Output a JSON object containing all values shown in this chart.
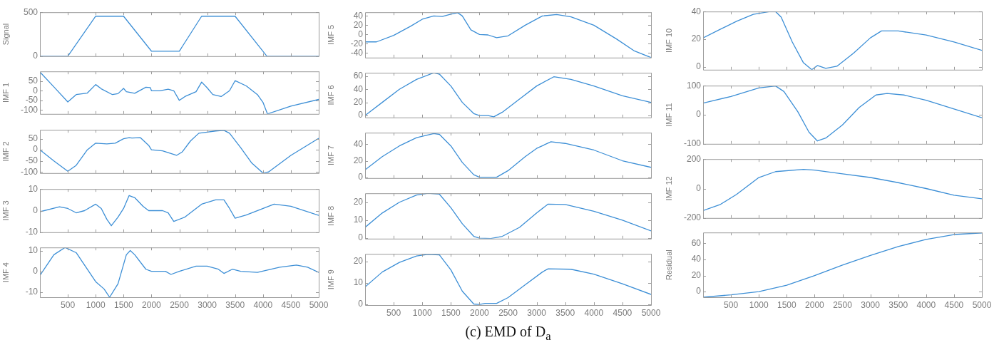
{
  "chart_data": [
    {
      "type": "line",
      "ylabel": "Signal",
      "x": [
        0,
        500,
        1000,
        1500,
        2000,
        2500,
        2900,
        3500,
        4070,
        5000
      ],
      "series": [
        {
          "color": "#3d8fd6",
          "values": [
            0,
            0,
            455,
            455,
            57,
            57,
            455,
            455,
            0,
            0
          ]
        }
      ],
      "xlim": [
        0,
        5000
      ],
      "xticks": [
        500,
        1000,
        1500,
        2000,
        2500,
        3000,
        3500,
        4000,
        4500,
        5000
      ],
      "ylim": [
        0,
        500
      ],
      "yticks": [
        0,
        500
      ],
      "tick_labels": "y"
    },
    {
      "type": "line",
      "ylabel": "IMF 1",
      "x": [
        0,
        250,
        500,
        650,
        850,
        1000,
        1100,
        1300,
        1400,
        1500,
        1550,
        1700,
        1900,
        1980,
        2000,
        2150,
        2300,
        2400,
        2500,
        2600,
        2800,
        2900,
        3000,
        3100,
        3250,
        3400,
        3500,
        3700,
        3900,
        4000,
        4080,
        4500,
        5000
      ],
      "series": [
        {
          "color": "#3d8fd6",
          "values": [
            97,
            20,
            -58,
            -20,
            -12,
            32,
            10,
            -20,
            -15,
            12,
            -5,
            -13,
            18,
            16,
            0,
            0,
            8,
            0,
            -50,
            -30,
            -5,
            45,
            15,
            -20,
            -30,
            0,
            52,
            25,
            -20,
            -60,
            -120,
            -80,
            -45
          ]
        }
      ],
      "xlim": [
        0,
        5000
      ],
      "xticks": [
        500,
        1000,
        1500,
        2000,
        2500,
        3000,
        3500,
        4000,
        4500,
        5000
      ],
      "ylim": [
        -120,
        100
      ],
      "yticks": [
        -100,
        -50,
        0,
        50
      ],
      "tick_labels": "y"
    },
    {
      "type": "line",
      "ylabel": "IMF 2",
      "x": [
        0,
        250,
        500,
        650,
        850,
        1000,
        1200,
        1350,
        1500,
        1600,
        1650,
        1800,
        1950,
        2000,
        2200,
        2450,
        2550,
        2700,
        2850,
        3000,
        3150,
        3300,
        3400,
        3600,
        3800,
        4000,
        4100,
        4500,
        5000
      ],
      "series": [
        {
          "color": "#3d8fd6",
          "values": [
            0,
            -50,
            -97,
            -70,
            0,
            30,
            27,
            30,
            50,
            55,
            53,
            55,
            20,
            0,
            -5,
            -25,
            -10,
            40,
            75,
            80,
            85,
            88,
            75,
            10,
            -60,
            -105,
            -100,
            -25,
            52
          ]
        }
      ],
      "xlim": [
        0,
        5000
      ],
      "xticks": [
        500,
        1000,
        1500,
        2000,
        2500,
        3000,
        3500,
        4000,
        4500,
        5000
      ],
      "ylim": [
        -105,
        90
      ],
      "yticks": [
        -100,
        -50,
        0,
        50
      ],
      "tick_labels": "y"
    },
    {
      "type": "line",
      "ylabel": "IMF 3",
      "x": [
        0,
        350,
        500,
        650,
        800,
        1000,
        1100,
        1200,
        1280,
        1400,
        1500,
        1600,
        1700,
        1850,
        1950,
        2200,
        2300,
        2400,
        2600,
        2900,
        3150,
        3300,
        3400,
        3500,
        3700,
        4200,
        4500,
        5000
      ],
      "series": [
        {
          "color": "#3d8fd6",
          "values": [
            -0.5,
            1.8,
            1,
            -1,
            0,
            3,
            1,
            -4,
            -7,
            -3,
            1,
            7,
            6,
            2,
            0,
            0,
            -1,
            -5,
            -3,
            3,
            5,
            5,
            1,
            -3.5,
            -2,
            3,
            2,
            -2.2
          ]
        }
      ],
      "xlim": [
        0,
        5000
      ],
      "xticks": [
        500,
        1000,
        1500,
        2000,
        2500,
        3000,
        3500,
        4000,
        4500,
        5000
      ],
      "ylim": [
        -10,
        10
      ],
      "yticks": [
        -10,
        0,
        10
      ],
      "tick_labels": "y"
    },
    {
      "type": "line",
      "ylabel": "IMF 4",
      "x": [
        0,
        250,
        450,
        650,
        800,
        1000,
        1150,
        1250,
        1400,
        1550,
        1620,
        1700,
        1900,
        2000,
        2250,
        2350,
        2500,
        2800,
        3000,
        3200,
        3300,
        3450,
        3600,
        3900,
        4300,
        4600,
        4800,
        5000
      ],
      "series": [
        {
          "color": "#3d8fd6",
          "values": [
            -2,
            8,
            11.5,
            9,
            3,
            -5,
            -8.5,
            -12.5,
            -6,
            8,
            10,
            8,
            1,
            0,
            0,
            -1.5,
            0,
            2.5,
            2.5,
            1,
            -1,
            1,
            0,
            -0.5,
            2,
            3,
            2,
            -0.5
          ]
        }
      ],
      "xlim": [
        0,
        5000
      ],
      "xticks": [
        500,
        1000,
        1500,
        2000,
        2500,
        3000,
        3500,
        4000,
        4500,
        5000
      ],
      "ylim": [
        -12.5,
        11.5
      ],
      "yticks": [
        -10,
        0,
        10
      ]
    },
    {
      "type": "line",
      "ylabel": "IMF 5",
      "x": [
        0,
        200,
        500,
        800,
        1000,
        1200,
        1350,
        1500,
        1620,
        1700,
        1850,
        2000,
        2150,
        2300,
        2500,
        2800,
        3100,
        3350,
        3600,
        4000,
        4400,
        4700,
        5000
      ],
      "series": [
        {
          "color": "#3d8fd6",
          "values": [
            -16,
            -16,
            -2,
            18,
            33,
            40,
            39,
            44,
            47,
            40,
            10,
            0,
            -1,
            -7,
            -3,
            20,
            40,
            43,
            38,
            20,
            -10,
            -35,
            -50
          ]
        }
      ],
      "xlim": [
        0,
        5000
      ],
      "xticks": [
        500,
        1000,
        1500,
        2000,
        2500,
        3000,
        3500,
        4000,
        4500,
        5000
      ],
      "ylim": [
        -50,
        48
      ],
      "yticks": [
        -40,
        -20,
        0,
        20,
        40
      ],
      "tick_labels": "y"
    },
    {
      "type": "line",
      "ylabel": "IMF 6",
      "x": [
        0,
        300,
        600,
        900,
        1200,
        1300,
        1500,
        1700,
        1900,
        2000,
        2150,
        2250,
        2400,
        2700,
        3000,
        3300,
        3600,
        4000,
        4500,
        5000
      ],
      "series": [
        {
          "color": "#3d8fd6",
          "values": [
            0,
            20,
            40,
            55,
            65,
            63,
            45,
            20,
            3,
            0,
            0,
            -2,
            5,
            25,
            45,
            59,
            55,
            45,
            30,
            20
          ]
        }
      ],
      "xlim": [
        0,
        5000
      ],
      "xticks": [
        500,
        1000,
        1500,
        2000,
        2500,
        3000,
        3500,
        4000,
        4500,
        5000
      ],
      "ylim": [
        -3,
        65
      ],
      "yticks": [
        0,
        20,
        40,
        60
      ],
      "tick_labels": "y"
    },
    {
      "type": "line",
      "ylabel": "IMF 7",
      "x": [
        0,
        300,
        600,
        900,
        1200,
        1300,
        1500,
        1700,
        1900,
        2000,
        2200,
        2300,
        2500,
        2800,
        3000,
        3250,
        3500,
        4000,
        4500,
        5000
      ],
      "series": [
        {
          "color": "#3d8fd6",
          "values": [
            9,
            25,
            38,
            48,
            53,
            52,
            38,
            18,
            3,
            0,
            0,
            0,
            8,
            25,
            35,
            43,
            41,
            33,
            20,
            12
          ]
        }
      ],
      "xlim": [
        0,
        5000
      ],
      "xticks": [
        500,
        1000,
        1500,
        2000,
        2500,
        3000,
        3500,
        4000,
        4500,
        5000
      ],
      "ylim": [
        -1,
        54
      ],
      "yticks": [
        0,
        20,
        40
      ],
      "tick_labels": "y"
    },
    {
      "type": "line",
      "ylabel": "IMF 8",
      "x": [
        0,
        300,
        600,
        900,
        1100,
        1300,
        1500,
        1700,
        1900,
        2000,
        2200,
        2400,
        2700,
        3000,
        3200,
        3500,
        4000,
        4500,
        5000
      ],
      "series": [
        {
          "color": "#3d8fd6",
          "values": [
            6,
            14,
            20,
            24,
            25,
            24.5,
            17,
            8,
            1,
            0,
            -0.2,
            1,
            6,
            14,
            19,
            18.8,
            15,
            10,
            4
          ]
        }
      ],
      "xlim": [
        0,
        5000
      ],
      "xticks": [
        500,
        1000,
        1500,
        2000,
        2500,
        3000,
        3500,
        4000,
        4500,
        5000
      ],
      "ylim": [
        -0.3,
        25
      ],
      "yticks": [
        0,
        10,
        20
      ],
      "tick_labels": "y"
    },
    {
      "type": "line",
      "ylabel": "IMF 9",
      "x": [
        0,
        300,
        600,
        900,
        1100,
        1300,
        1500,
        1700,
        1900,
        2000,
        2100,
        2300,
        2500,
        2800,
        3100,
        3200,
        3600,
        4000,
        4500,
        5000
      ],
      "series": [
        {
          "color": "#3d8fd6",
          "values": [
            8,
            15,
            19.5,
            22.5,
            23.3,
            23,
            16,
            6,
            0,
            -0.2,
            0.3,
            0.3,
            3,
            9,
            15,
            16.5,
            16.3,
            14,
            9.5,
            4.5
          ]
        }
      ],
      "xlim": [
        0,
        5000
      ],
      "xticks": [
        500,
        1000,
        1500,
        2000,
        2500,
        3000,
        3500,
        4000,
        4500,
        5000
      ],
      "ylim": [
        -0.5,
        23.5
      ],
      "yticks": [
        0,
        10,
        20
      ],
      "annotations": [
        "(c) EMD of D$_{a}$"
      ]
    },
    {
      "type": "line",
      "ylabel": "IMF 10",
      "x": [
        0,
        300,
        600,
        900,
        1200,
        1300,
        1400,
        1600,
        1800,
        1950,
        2050,
        2200,
        2400,
        2700,
        3000,
        3200,
        3500,
        4000,
        4500,
        5000
      ],
      "series": [
        {
          "color": "#3d8fd6",
          "values": [
            21,
            27,
            33,
            38,
            40,
            40,
            36,
            18,
            3,
            -2,
            1,
            -1,
            0.5,
            10,
            21,
            26,
            26,
            23,
            18,
            12
          ]
        }
      ],
      "xlim": [
        0,
        5000
      ],
      "xticks": [
        500,
        1000,
        1500,
        2000,
        2500,
        3000,
        3500,
        4000,
        4500,
        5000
      ],
      "ylim": [
        -2,
        40
      ],
      "yticks": [
        0,
        20,
        40
      ],
      "tick_labels": "y"
    },
    {
      "type": "line",
      "ylabel": "IMF 11",
      "x": [
        0,
        500,
        1000,
        1300,
        1450,
        1700,
        1900,
        2050,
        2200,
        2500,
        2800,
        3100,
        3300,
        3600,
        4000,
        4500,
        5000
      ],
      "series": [
        {
          "color": "#3d8fd6",
          "values": [
            40,
            63,
            92,
            99,
            80,
            10,
            -60,
            -90,
            -80,
            -35,
            25,
            68,
            73,
            68,
            50,
            20,
            -10
          ]
        }
      ],
      "xlim": [
        0,
        5000
      ],
      "xticks": [
        500,
        1000,
        1500,
        2000,
        2500,
        3000,
        3500,
        4000,
        4500,
        5000
      ],
      "ylim": [
        -100,
        100
      ],
      "yticks": [
        -100,
        0,
        100
      ],
      "tick_labels": "y"
    },
    {
      "type": "line",
      "ylabel": "IMF 12",
      "x": [
        0,
        300,
        600,
        1000,
        1300,
        1800,
        2000,
        2500,
        3000,
        3500,
        4000,
        4500,
        5000
      ],
      "series": [
        {
          "color": "#3d8fd6",
          "values": [
            -150,
            -110,
            -40,
            75,
            115,
            130,
            125,
            100,
            75,
            40,
            0,
            -45,
            -70
          ]
        }
      ],
      "xlim": [
        0,
        5000
      ],
      "xticks": [
        500,
        1000,
        1500,
        2000,
        2500,
        3000,
        3500,
        4000,
        4500,
        5000
      ],
      "ylim": [
        -200,
        200
      ],
      "yticks": [
        -200,
        0,
        200
      ],
      "tick_labels": "y"
    },
    {
      "type": "line",
      "ylabel": "Residual",
      "x": [
        0,
        500,
        1000,
        1500,
        2000,
        2500,
        3000,
        3500,
        4000,
        4500,
        5000
      ],
      "series": [
        {
          "color": "#3d8fd6",
          "values": [
            -7,
            -4,
            0,
            8,
            20,
            33,
            45,
            56,
            65,
            71,
            73
          ]
        }
      ],
      "xlim": [
        0,
        5000
      ],
      "xticks": [
        500,
        1000,
        1500,
        2000,
        2500,
        3000,
        3500,
        4000,
        4500,
        5000
      ],
      "ylim": [
        -7,
        73.5
      ],
      "yticks": [
        0,
        20,
        40,
        60
      ]
    }
  ]
}
